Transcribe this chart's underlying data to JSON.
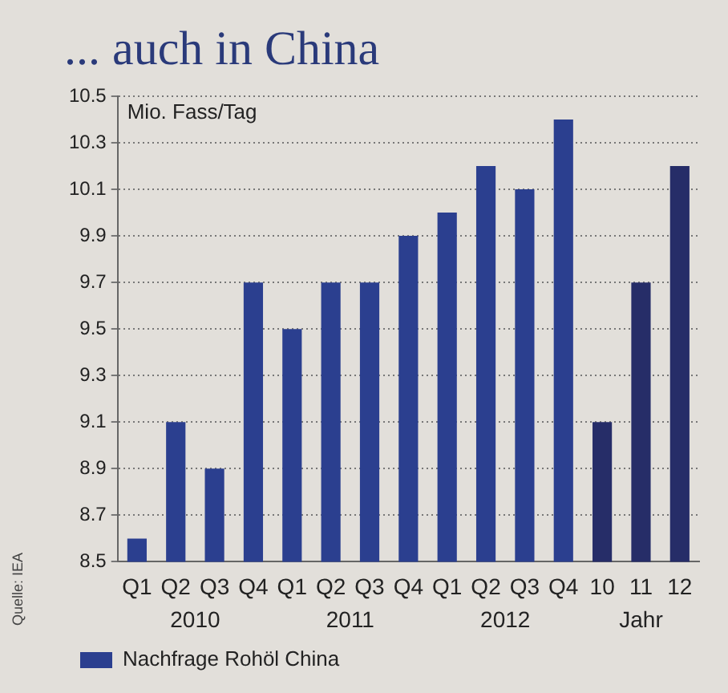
{
  "chart_data": {
    "type": "bar",
    "title": "... auch in China",
    "ylabel": "Mio. Fass/Tag",
    "categories": [
      "Q1",
      "Q2",
      "Q3",
      "Q4",
      "Q1",
      "Q2",
      "Q3",
      "Q4",
      "Q1",
      "Q2",
      "Q3",
      "Q4",
      "10",
      "11",
      "12"
    ],
    "series": [
      {
        "name": "Nachfrage Rohöl China",
        "color": "#2b3f8f",
        "colors": [
          "#2b3f8f",
          "#2b3f8f",
          "#2b3f8f",
          "#2b3f8f",
          "#2b3f8f",
          "#2b3f8f",
          "#2b3f8f",
          "#2b3f8f",
          "#2b3f8f",
          "#2b3f8f",
          "#2b3f8f",
          "#2b3f8f",
          "#262d68",
          "#262d68",
          "#262d68"
        ],
        "values": [
          8.6,
          9.1,
          8.9,
          9.7,
          9.5,
          9.7,
          9.7,
          9.9,
          10.0,
          10.2,
          10.1,
          10.4,
          9.1,
          9.7,
          10.2
        ]
      }
    ],
    "ylim": [
      8.5,
      10.5
    ],
    "yticks": [
      8.5,
      8.7,
      8.9,
      9.1,
      9.3,
      9.5,
      9.7,
      9.9,
      10.1,
      10.3,
      10.5
    ],
    "grid": "y",
    "legend": "bottom",
    "annotations": [
      "2010",
      "2011",
      "2012",
      "Jahr",
      "Quelle: IEA"
    ]
  }
}
